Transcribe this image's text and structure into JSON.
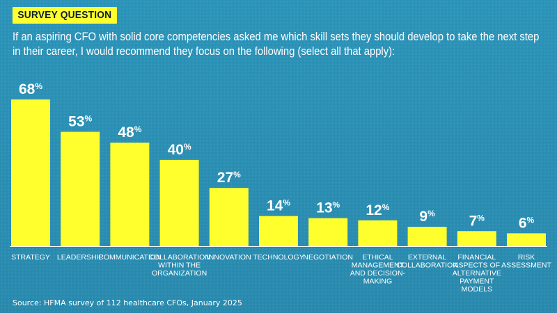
{
  "header": {
    "tag": "SURVEY QUESTION",
    "question_lines": [
      "If an aspiring CFO with solid core competencies asked me which skill sets they should develop to take the next step",
      "in their career, I would recommend they focus on the following (select all that apply):"
    ]
  },
  "source": "Source: HFMA survey of 112 healthcare CFOs, January 2025",
  "colors": {
    "bar": "#ffff2e",
    "background": "#2a8fb3",
    "text": "#ffffff"
  },
  "chart_data": {
    "type": "bar",
    "title": "",
    "xlabel": "",
    "ylabel": "",
    "unit": "%",
    "ylim": [
      0,
      68
    ],
    "categories": [
      [
        "STRATEGY"
      ],
      [
        "LEADERSHIP"
      ],
      [
        "COMMUNICATION"
      ],
      [
        "COLLABORATION",
        "WITHIN THE",
        "ORGANIZATION"
      ],
      [
        "INNOVATION"
      ],
      [
        "TECHNOLOGY"
      ],
      [
        "NEGOTIATION"
      ],
      [
        "ETHICAL",
        "MANAGEMENT",
        "AND DECISION-",
        "MAKING"
      ],
      [
        "EXTERNAL",
        "COLLABORATION"
      ],
      [
        "FINANCIAL",
        "ASPECTS OF",
        "ALTERNATIVE",
        "PAYMENT",
        "MODELS"
      ],
      [
        "RISK",
        "ASSESSMENT"
      ]
    ],
    "values": [
      68,
      53,
      48,
      40,
      27,
      14,
      13,
      12,
      9,
      7,
      6
    ]
  }
}
